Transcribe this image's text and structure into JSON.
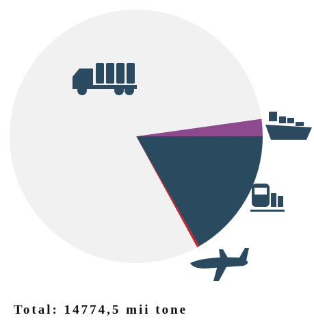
{
  "chart_data": {
    "type": "pie",
    "categories": [
      null,
      null,
      null,
      null
    ],
    "values": [
      2.2,
      16.7,
      0.3,
      80.8
    ],
    "colors": [
      "#8e4a8e",
      "#2a4a60",
      "#d0202a",
      "#f1f1f1"
    ],
    "total": "Total: 14774,5 mii tone"
  }
}
